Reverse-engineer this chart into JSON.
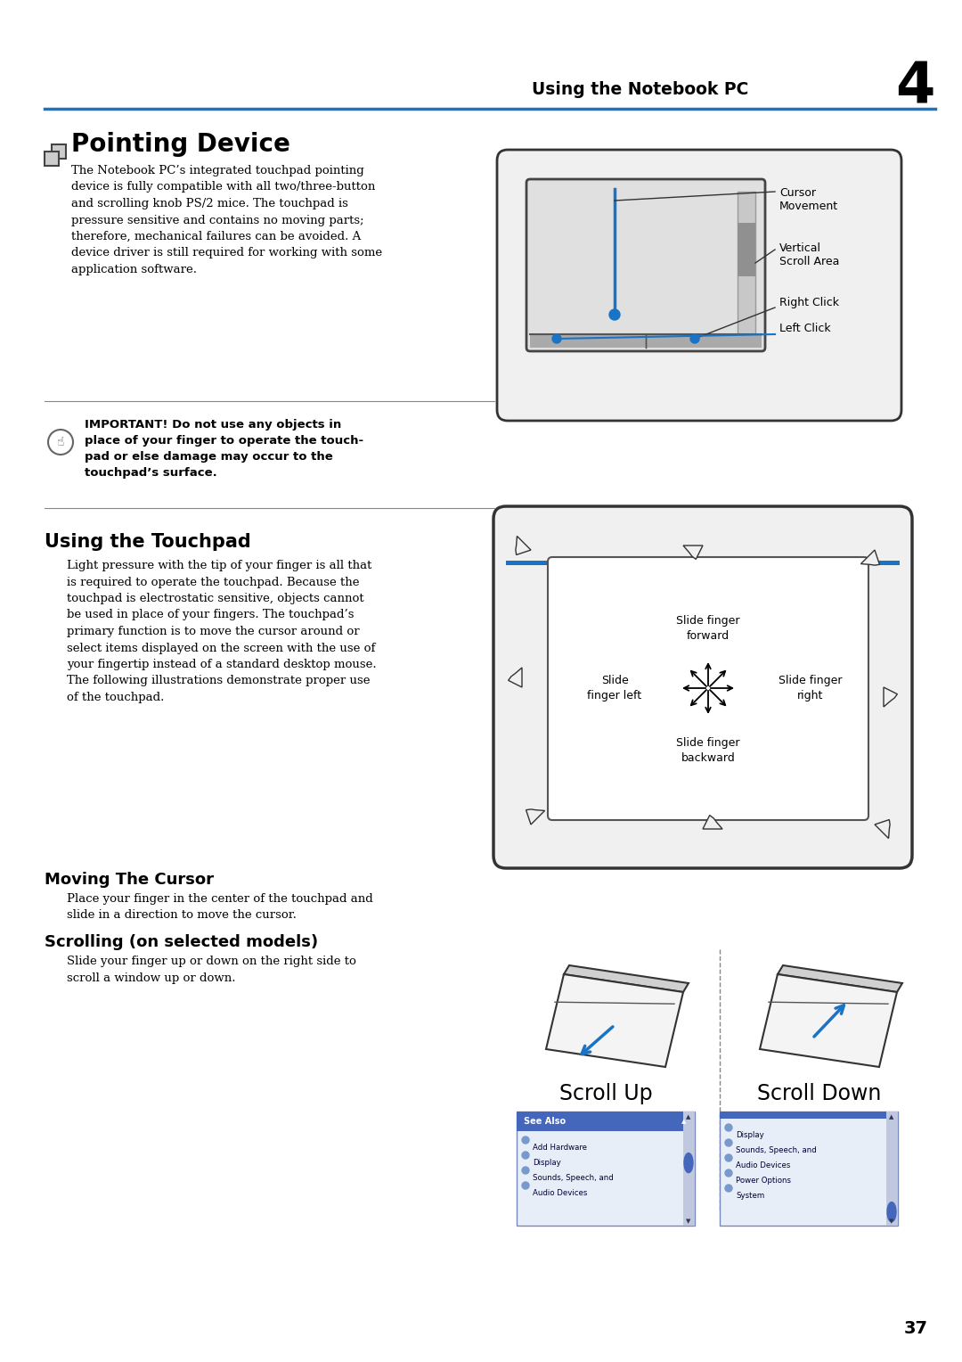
{
  "bg_color": "#ffffff",
  "page_width": 10.8,
  "page_height": 15.28,
  "header_text": "Using the Notebook PC",
  "header_number": "4",
  "header_line_color": "#1a56c4",
  "section1_title": "Pointing Device",
  "section1_body": "The Notebook PC’s integrated touchpad pointing\ndevice is fully compatible with all two/three-button\nand scrolling knob PS/2 mice. The touchpad is\npressure sensitive and contains no moving parts;\ntherefore, mechanical failures can be avoided. A\ndevice driver is still required for working with some\napplication software.",
  "important_text": "IMPORTANT! Do not use any objects in\nplace of your finger to operate the touch-\npad or else damage may occur to the\ntouchpad’s surface.",
  "section2_title": "Using the Touchpad",
  "section2_body": "Light pressure with the tip of your finger is all that\nis required to operate the touchpad. Because the\ntouchpad is electrostatic sensitive, objects cannot\nbe used in place of your fingers. The touchpad’s\nprimary function is to move the cursor around or\nselect items displayed on the screen with the use of\nyour fingertip instead of a standard desktop mouse.\nThe following illustrations demonstrate proper use\nof the touchpad.",
  "section3_title": "Moving The Cursor",
  "section3_body": "Place your finger in the center of the touchpad and\nslide in a direction to move the cursor.",
  "section4_title": "Scrolling (on selected models)",
  "section4_body": "Slide your finger up or down on the right side to\nscroll a window up or down.",
  "scroll_up_label": "Scroll Up",
  "scroll_down_label": "Scroll Down",
  "page_number": "37",
  "blue_color": "#1a73c4",
  "label_color": "#000000",
  "right_click_label": "Right Click",
  "left_click_label": "Left Click",
  "cursor_movement_label": "Cursor\nMovement",
  "vertical_scroll_label": "Vertical\nScroll Area",
  "slide_forward": "Slide finger\nforward",
  "slide_backward": "Slide finger\nbackward",
  "slide_left": "Slide\nfinger left",
  "slide_right": "Slide finger\nright"
}
